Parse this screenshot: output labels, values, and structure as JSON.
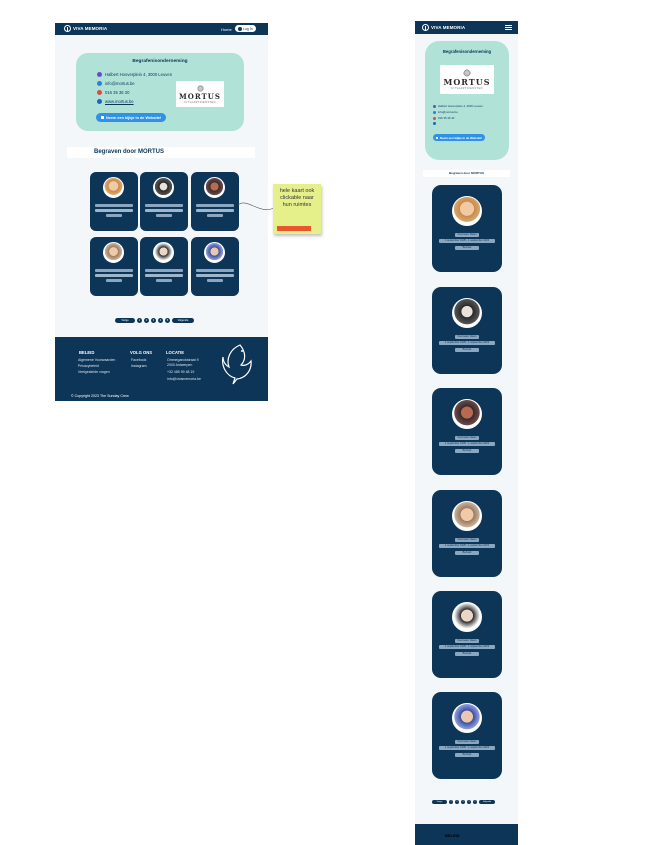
{
  "desktop": {
    "brand": "VIVA MEMORIA",
    "nav": {
      "home": "Home",
      "login": "Log In"
    },
    "company": {
      "heading": "Begrafenisonderneming",
      "address": "Halbert Hooverplein 4, 3000 Leuven",
      "email": "info@mortus.be",
      "phone": "016 35 36 30",
      "website": "www.mortus.be",
      "logo_word": "MORTUS",
      "logo_sub": "UITVAARTDIENSTEN",
      "website_button": "Neem een kijkje in de Website!"
    },
    "section_title": "Begraven door MORTUS",
    "pagination": {
      "prev": "Vorige",
      "next": "Volgende",
      "pages": [
        "1",
        "2",
        "3",
        "4",
        "5"
      ]
    },
    "footer": {
      "beleid_title": "BELEID",
      "beleid_items": [
        "Algemene Voorwaarden",
        "Privacybeleid",
        "Veelgestelde vragen"
      ],
      "volg_title": "VOLG ONS",
      "volg_items": [
        "Facebook",
        "Instagram"
      ],
      "locatie_title": "LOCATIE",
      "locatie_items": [
        "Ommeganckstraat 9",
        "2000 Antwerpen",
        "+32 485 99 48 19",
        "info@vivamemoria.be"
      ],
      "copyright": "© Copyright 2023 The Sunday Crew"
    }
  },
  "sticky_note": {
    "text": "hele kaart ook clickable naar hun ruimtes"
  },
  "mobile": {
    "brand": "VIVA MEMORIA",
    "company": {
      "heading": "Begrafenisonderneming",
      "logo_word": "MORTUS",
      "logo_sub": "UITVAARTDIENSTEN",
      "address": "Halbert Hooverplein 4, 3000 Leuven",
      "email": "info@mortus.be",
      "phone": "016 35 36 30",
      "website_button": "Neem een kijkje in de Website!"
    },
    "section_title": "Begraven door MORTUS",
    "cards": [
      {
        "name": "Voornaam Naam",
        "dates": "1 september 1935 - 1 september 2023",
        "button": "Bezoek"
      },
      {
        "name": "Voornaam Naam",
        "dates": "1 september 1935 - 1 september 2023",
        "button": "Bezoek"
      },
      {
        "name": "Voornaam Naam",
        "dates": "1 september 1935 - 1 september 2023",
        "button": "Bezoek"
      },
      {
        "name": "Voornaam Naam",
        "dates": "1 september 1935 - 1 september 2023",
        "button": "Bezoek"
      },
      {
        "name": "Voornaam Naam",
        "dates": "1 september 1935 - 1 september 2023",
        "button": "Bezoek"
      },
      {
        "name": "Voornaam Naam",
        "dates": "1 september 1935 - 1 september 2023",
        "button": "Bezoek"
      }
    ],
    "footer_title": "BELEID"
  },
  "colors": {
    "navy": "#0d3557",
    "mint": "#b1e2d8",
    "accent_blue": "#2f92e6",
    "sticky": "#e6f08a",
    "sticky_tape": "#e8562c"
  }
}
